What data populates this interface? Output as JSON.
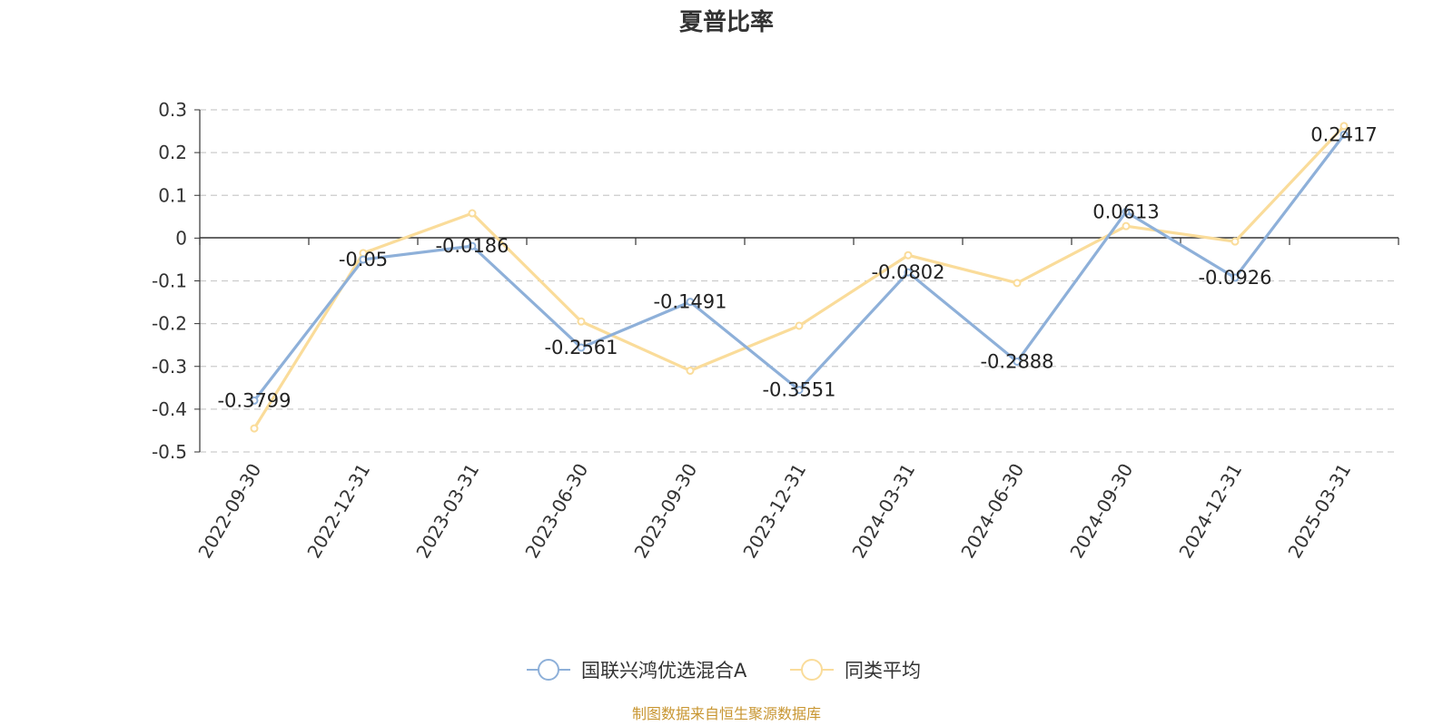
{
  "chart_data": {
    "type": "line",
    "title": "夏普比率",
    "categories": [
      "2022-09-30",
      "2022-12-31",
      "2023-03-31",
      "2023-06-30",
      "2023-09-30",
      "2023-12-31",
      "2024-03-31",
      "2024-06-30",
      "2024-09-30",
      "2024-12-31",
      "2025-03-31"
    ],
    "ylim": [
      -0.5,
      0.3
    ],
    "yticks": [
      0.3,
      0.2,
      0.1,
      0,
      -0.1,
      -0.2,
      -0.3,
      -0.4,
      -0.5
    ],
    "grid": true,
    "legend_position": "bottom",
    "series": [
      {
        "name": "国联兴鸿优选混合A",
        "color": "#8eb0d9",
        "values": [
          -0.3799,
          -0.05,
          -0.0186,
          -0.2561,
          -0.1491,
          -0.3551,
          -0.0802,
          -0.2888,
          0.0613,
          -0.0926,
          0.2417
        ],
        "labels": [
          "-0.3799",
          "-0.05",
          "-0.0186",
          "-0.2561",
          "-0.1491",
          "-0.3551",
          "-0.0802",
          "-0.2888",
          "0.0613",
          "-0.0926",
          "0.2417"
        ]
      },
      {
        "name": "同类平均",
        "color": "#fadc9a",
        "values": [
          -0.445,
          -0.035,
          0.058,
          -0.195,
          -0.31,
          -0.205,
          -0.04,
          -0.105,
          0.028,
          -0.008,
          0.262
        ]
      }
    ]
  },
  "source_note": "制图数据来自恒生聚源数据库"
}
